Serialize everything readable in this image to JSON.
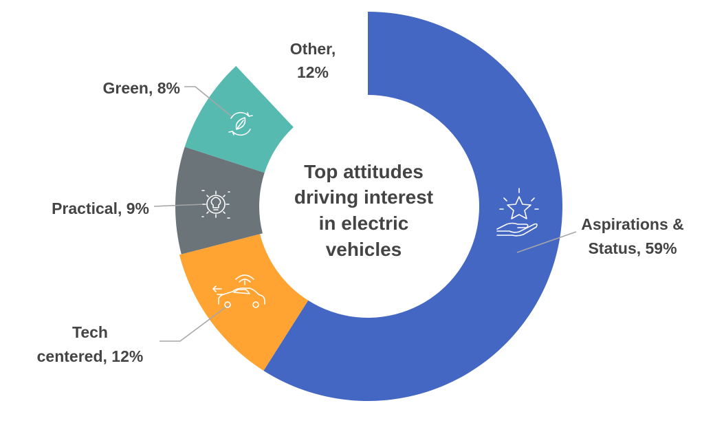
{
  "chart_data": {
    "type": "pie",
    "variant": "donut",
    "title": "Top attitudes driving interest in electric vehicles",
    "slices": [
      {
        "label": "Aspirations & Status, 59%",
        "category": "Aspirations & Status",
        "value": 59,
        "color": "#4467c4",
        "icon": "hand-star-icon",
        "exploded": false
      },
      {
        "label": "Tech centered, 12%",
        "category": "Tech centered",
        "value": 12,
        "color": "#ffa433",
        "icon": "connected-car-icon",
        "exploded": false
      },
      {
        "label": "Practical, 9%",
        "category": "Practical",
        "value": 9,
        "color": "#6b7479",
        "icon": "gear-lightbulb-icon",
        "exploded": false
      },
      {
        "label": "Green, 8%",
        "category": "Green",
        "value": 8,
        "color": "#56bab0",
        "icon": "recycle-leaf-icon",
        "exploded": false
      },
      {
        "label": "Other, 12%",
        "category": "Other",
        "value": 12,
        "color": "#ffffff",
        "icon": "",
        "exploded": false
      }
    ],
    "title_lines": [
      "Top attitudes",
      "driving interest",
      "in electric",
      "vehicles"
    ],
    "label_lines": [
      [
        "Aspirations &",
        "Status, 59%"
      ],
      [
        "Tech",
        "centered, 12%"
      ],
      [
        "Practical, 9%"
      ],
      [
        "Green, 8%"
      ],
      [
        "Other,",
        "12%"
      ]
    ]
  }
}
